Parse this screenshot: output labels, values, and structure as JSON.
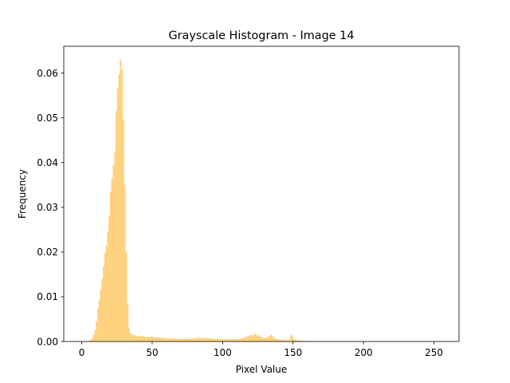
{
  "chart_data": {
    "type": "bar",
    "title": "Grayscale Histogram - Image 14",
    "xlabel": "Pixel Value",
    "ylabel": "Frequency",
    "xlim": [
      -12.75,
      267.75
    ],
    "ylim": [
      0,
      0.066
    ],
    "x_ticks": [
      0,
      50,
      100,
      150,
      200,
      250
    ],
    "y_ticks": [
      0.0,
      0.01,
      0.02,
      0.03,
      0.04,
      0.05,
      0.06
    ],
    "x_tick_labels": [
      "0",
      "50",
      "100",
      "150",
      "200",
      "250"
    ],
    "y_tick_labels": [
      "0.00",
      "0.01",
      "0.02",
      "0.03",
      "0.04",
      "0.05",
      "0.06"
    ],
    "bar_color": "#ffd280",
    "grid": false,
    "x": [
      0,
      1,
      2,
      3,
      4,
      5,
      6,
      7,
      8,
      9,
      10,
      11,
      12,
      13,
      14,
      15,
      16,
      17,
      18,
      19,
      20,
      21,
      22,
      23,
      24,
      25,
      26,
      27,
      28,
      29,
      30,
      31,
      32,
      33,
      34,
      35,
      36,
      37,
      38,
      39,
      40,
      41,
      42,
      43,
      44,
      45,
      46,
      47,
      48,
      49,
      50,
      51,
      52,
      53,
      54,
      55,
      56,
      57,
      58,
      59,
      60,
      61,
      62,
      63,
      64,
      65,
      66,
      67,
      68,
      69,
      70,
      71,
      72,
      73,
      74,
      75,
      76,
      77,
      78,
      79,
      80,
      81,
      82,
      83,
      84,
      85,
      86,
      87,
      88,
      89,
      90,
      91,
      92,
      93,
      94,
      95,
      96,
      97,
      98,
      99,
      100,
      101,
      102,
      103,
      104,
      105,
      106,
      107,
      108,
      109,
      110,
      111,
      112,
      113,
      114,
      115,
      116,
      117,
      118,
      119,
      120,
      121,
      122,
      123,
      124,
      125,
      126,
      127,
      128,
      129,
      130,
      131,
      132,
      133,
      134,
      135,
      136,
      137,
      138,
      139,
      140,
      141,
      142,
      143,
      144,
      145,
      146,
      147,
      148,
      149,
      150,
      151,
      152,
      153,
      154,
      155,
      156,
      157,
      158,
      159,
      160
    ],
    "values": [
      0,
      0,
      0,
      0,
      0.0001,
      0.0002,
      0.0004,
      0.0008,
      0.0015,
      0.0025,
      0.0045,
      0.0075,
      0.0093,
      0.0115,
      0.014,
      0.0168,
      0.0198,
      0.0215,
      0.0245,
      0.028,
      0.0335,
      0.0365,
      0.0395,
      0.0425,
      0.0515,
      0.0565,
      0.0598,
      0.063,
      0.0607,
      0.0495,
      0.035,
      0.02,
      0.0085,
      0.003,
      0.0018,
      0.0016,
      0.0014,
      0.0015,
      0.0013,
      0.0012,
      0.0013,
      0.0012,
      0.0011,
      0.0012,
      0.0011,
      0.001,
      0.0011,
      0.001,
      0.001,
      0.0011,
      0.001,
      0.0009,
      0.001,
      0.0009,
      0.0009,
      0.0008,
      0.0009,
      0.0008,
      0.0008,
      0.0007,
      0.0008,
      0.0007,
      0.0007,
      0.0007,
      0.0006,
      0.0007,
      0.0006,
      0.0006,
      0.0006,
      0.0006,
      0.0006,
      0.0006,
      0.0006,
      0.0006,
      0.0006,
      0.0006,
      0.0006,
      0.0007,
      0.0007,
      0.0007,
      0.0007,
      0.0008,
      0.0008,
      0.0008,
      0.0008,
      0.0008,
      0.0008,
      0.0008,
      0.0008,
      0.0007,
      0.0007,
      0.0007,
      0.0007,
      0.0006,
      0.0006,
      0.0006,
      0.0006,
      0.0006,
      0.0006,
      0.0005,
      0.0005,
      0.0005,
      0.0005,
      0.0005,
      0.0005,
      0.0005,
      0.0005,
      0.0005,
      0.0006,
      0.0005,
      0.0006,
      0.0006,
      0.0007,
      0.0006,
      0.0008,
      0.0009,
      0.001,
      0.0012,
      0.0011,
      0.0014,
      0.0015,
      0.0013,
      0.0016,
      0.0017,
      0.0012,
      0.0015,
      0.0012,
      0.001,
      0.0009,
      0.0008,
      0.0008,
      0.0009,
      0.0011,
      0.0013,
      0.0015,
      0.0012,
      0.0008,
      0.0006,
      0.0005,
      0.0005,
      0.0004,
      0.0004,
      0.0004,
      0.0003,
      0.0003,
      0.0003,
      0.0004,
      0.0003,
      0.0015,
      0.0012,
      0.0006,
      0.0004,
      0.0003,
      0.0003,
      0.0002,
      0.0002,
      0.0002,
      0.0002,
      0.0001,
      0.0001,
      0.0001
    ]
  }
}
